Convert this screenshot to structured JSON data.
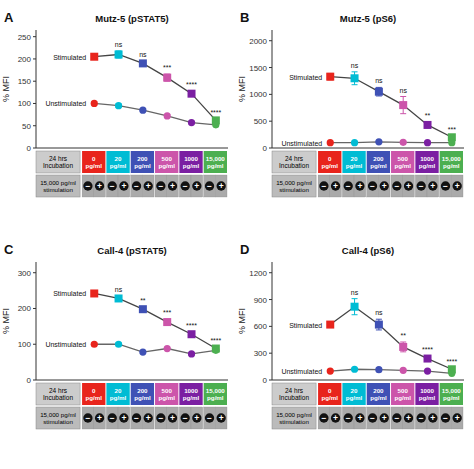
{
  "chart_data": [
    {
      "type": "line",
      "title": "Mutz-5 (pSTAT5)",
      "panel_label": "A",
      "y_label": "% MFI",
      "categories": [
        "0\npg/ml",
        "20\npg/ml",
        "200\npg/ml",
        "500\npg/ml",
        "1000\npg/ml",
        "15,000\npg/ml"
      ],
      "colors": [
        "#e8241c",
        "#00bcd4",
        "#3f51b5",
        "#cc55aa",
        "#7b1fa2",
        "#4caf50"
      ],
      "ylim": [
        0,
        265
      ],
      "yticks": [
        0,
        50,
        100,
        150,
        200,
        250
      ],
      "grid": false,
      "series": [
        {
          "name": "Stimulated",
          "marker": "square",
          "color": "#444444",
          "values": [
            205,
            210,
            190,
            158,
            122,
            62
          ],
          "errors": [
            5,
            8,
            6,
            8,
            6,
            4
          ]
        },
        {
          "name": "Unstimulated",
          "marker": "circle",
          "color": "#666666",
          "values": [
            100,
            95,
            85,
            72,
            57,
            52
          ],
          "errors": [
            3,
            4,
            3,
            3,
            3,
            2
          ]
        }
      ],
      "annotations": [
        {
          "text": "ns",
          "index": 1
        },
        {
          "text": "ns",
          "index": 2
        },
        {
          "text": "***",
          "index": 3
        },
        {
          "text": "****",
          "index": 4
        },
        {
          "text": "****",
          "index": 5
        }
      ],
      "table_labels": [
        "24 hrs\nIncubation",
        "15,000 pg/ml\nstimulation"
      ],
      "table_signs": [
        "−",
        "+"
      ]
    },
    {
      "type": "line",
      "title": "Mutz-5 (pS6)",
      "panel_label": "B",
      "y_label": "% MFI",
      "categories": [
        "0\npg/ml",
        "20\npg/ml",
        "200\npg/ml",
        "500\npg/ml",
        "1000\npg/ml",
        "15,000\npg/ml"
      ],
      "colors": [
        "#e8241c",
        "#00bcd4",
        "#3f51b5",
        "#cc55aa",
        "#7b1fa2",
        "#4caf50"
      ],
      "ylim": [
        0,
        2200
      ],
      "yticks": [
        0,
        500,
        1000,
        1500,
        2000
      ],
      "grid": false,
      "series": [
        {
          "name": "Stimulated",
          "marker": "square",
          "color": "#444444",
          "values": [
            1330,
            1300,
            1050,
            800,
            430,
            200
          ],
          "errors": [
            60,
            120,
            80,
            160,
            50,
            20
          ]
        },
        {
          "name": "Unstimulated",
          "marker": "circle",
          "color": "#666666",
          "values": [
            100,
            100,
            115,
            105,
            100,
            100
          ],
          "errors": [
            5,
            8,
            6,
            8,
            4,
            4
          ]
        }
      ],
      "annotations": [
        {
          "text": "ns",
          "index": 1
        },
        {
          "text": "ns",
          "index": 2
        },
        {
          "text": "ns",
          "index": 3
        },
        {
          "text": "**",
          "index": 4
        },
        {
          "text": "***",
          "index": 5
        }
      ],
      "table_labels": [
        "24 hrs\nIncubation",
        "15,000 pg/ml\nstimulation"
      ],
      "table_signs": [
        "−",
        "+"
      ]
    },
    {
      "type": "line",
      "title": "Call-4 (pSTAT5)",
      "panel_label": "C",
      "y_label": "% MFI",
      "categories": [
        "0\npg/ml",
        "20\npg/ml",
        "200\npg/ml",
        "500\npg/ml",
        "1000\npg/ml",
        "15,000\npg/ml"
      ],
      "colors": [
        "#e8241c",
        "#00bcd4",
        "#3f51b5",
        "#cc55aa",
        "#7b1fa2",
        "#4caf50"
      ],
      "ylim": [
        0,
        330
      ],
      "yticks": [
        0,
        100,
        200,
        300
      ],
      "grid": false,
      "series": [
        {
          "name": "Stimulated",
          "marker": "square",
          "color": "#444444",
          "values": [
            242,
            228,
            198,
            162,
            128,
            88
          ],
          "errors": [
            6,
            8,
            6,
            8,
            6,
            4
          ]
        },
        {
          "name": "Unstimulated",
          "marker": "circle",
          "color": "#666666",
          "values": [
            100,
            100,
            78,
            88,
            73,
            83
          ],
          "errors": [
            3,
            4,
            3,
            3,
            3,
            2
          ]
        }
      ],
      "annotations": [
        {
          "text": "ns",
          "index": 1
        },
        {
          "text": "**",
          "index": 2
        },
        {
          "text": "***",
          "index": 3
        },
        {
          "text": "****",
          "index": 4
        },
        {
          "text": "****",
          "index": 5
        }
      ],
      "table_labels": [
        "24 hrs\nIncubation",
        "15,000 pg/ml\nstimulation"
      ],
      "table_signs": [
        "−",
        "+"
      ]
    },
    {
      "type": "line",
      "title": "Call-4 (pS6)",
      "panel_label": "D",
      "y_label": "% MFI",
      "categories": [
        "0\npg/ml",
        "20\npg/ml",
        "200\npg/ml",
        "500\npg/ml",
        "1000\npg/ml",
        "15,000\npg/ml"
      ],
      "colors": [
        "#e8241c",
        "#00bcd4",
        "#3f51b5",
        "#cc55aa",
        "#7b1fa2",
        "#4caf50"
      ],
      "ylim": [
        0,
        1320
      ],
      "yticks": [
        0,
        300,
        600,
        900,
        1200
      ],
      "grid": false,
      "series": [
        {
          "name": "Stimulated",
          "marker": "square",
          "color": "#444444",
          "values": [
            620,
            820,
            620,
            370,
            240,
            120
          ],
          "errors": [
            30,
            90,
            60,
            55,
            25,
            12
          ]
        },
        {
          "name": "Unstimulated",
          "marker": "circle",
          "color": "#666666",
          "values": [
            100,
            120,
            115,
            108,
            100,
            75
          ],
          "errors": [
            4,
            6,
            5,
            5,
            4,
            3
          ]
        }
      ],
      "annotations": [
        {
          "text": "ns",
          "index": 1
        },
        {
          "text": "ns",
          "index": 2
        },
        {
          "text": "**",
          "index": 3
        },
        {
          "text": "****",
          "index": 4
        },
        {
          "text": "****",
          "index": 5
        }
      ],
      "table_labels": [
        "24 hrs\nIncubation",
        "15,000 pg/ml\nstimulation"
      ],
      "table_signs": [
        "−",
        "+"
      ]
    }
  ]
}
